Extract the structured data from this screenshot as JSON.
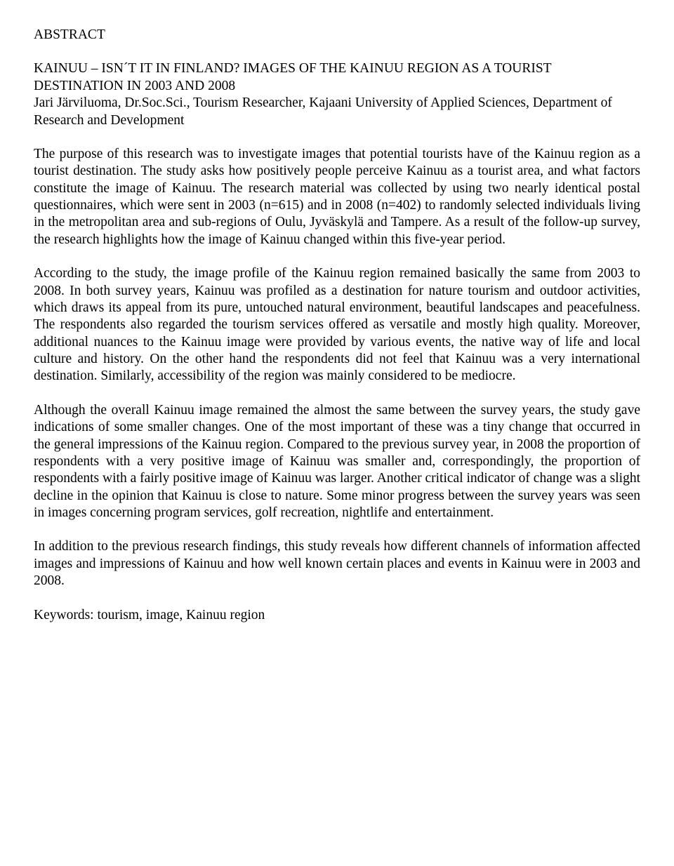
{
  "heading": "ABSTRACT",
  "subtitle_line1": "KAINUU – ISN´T IT IN FINLAND? IMAGES OF THE KAINUU REGION AS A TOURIST DESTINATION IN 2003 AND 2008",
  "subtitle_line2": "Jari Järviluoma, Dr.Soc.Sci., Tourism Researcher, Kajaani University of Applied Sciences, Department of Research and Development",
  "para1": "The purpose of this research was to investigate images that potential tourists have of the Kainuu region as a tourist destination. The study asks how positively people perceive Kainuu as a tourist area, and what factors constitute the image of Kainuu. The research material was collected by using two nearly identical postal questionnaires, which were sent in 2003 (n=615) and in 2008 (n=402) to randomly selected individuals living in the metropolitan area and sub-regions of Oulu, Jyväskylä and Tampere. As a result of the follow-up survey, the research highlights how the image of Kainuu changed within this five-year period.",
  "para2": "According to the study, the image profile of the Kainuu region remained basically the same from 2003 to 2008. In both survey years, Kainuu was profiled as a destination for nature tourism and outdoor activities, which draws its appeal from its pure, untouched natural environment, beautiful landscapes and peacefulness. The respondents also regarded the tourism services offered as versatile and mostly high quality. Moreover, additional nuances to the Kainuu image were provided by various events, the native way of life and local culture and history. On the other hand the respondents did not feel that Kainuu was a very international destination. Similarly, accessibility of the region was mainly considered to be mediocre.",
  "para3": "Although the overall Kainuu image remained the almost the same between the survey years, the study gave indications of some smaller changes. One of the most important of these was a tiny change that occurred in the general impressions of the Kainuu region. Compared to the previous survey year, in 2008 the proportion of respondents with a very positive image of Kainuu was smaller and, correspondingly, the proportion of respondents with a fairly positive image of Kainuu was larger. Another critical indicator of change was a slight decline in the opinion that Kainuu is close to nature. Some minor progress between the survey years was seen in images concerning program services, golf recreation, nightlife and entertainment.",
  "para4": "In addition to the previous research findings, this study reveals how different channels of information affected images and impressions of Kainuu and how well known certain places and events in Kainuu were in 2003 and 2008.",
  "keywords": "Keywords: tourism, image, Kainuu region"
}
